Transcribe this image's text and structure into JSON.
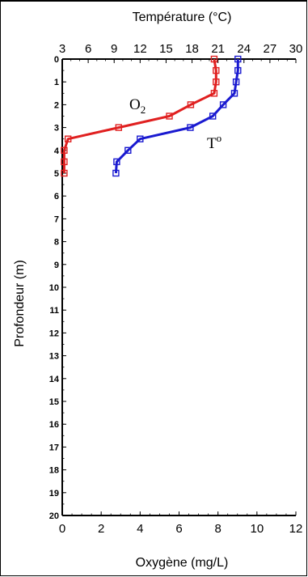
{
  "chart_data": {
    "type": "line",
    "title": "",
    "top_axis": {
      "label": "Température (°C)",
      "range": [
        3,
        30
      ],
      "ticks": [
        "3",
        "6",
        "9",
        "12",
        "15",
        "18",
        "21",
        "24",
        "27",
        "30"
      ]
    },
    "bottom_axis": {
      "label": "Oxygène (mg/L)",
      "range": [
        0,
        12
      ],
      "ticks": [
        "0",
        "2",
        "4",
        "6",
        "8",
        "10",
        "12"
      ]
    },
    "y_axis": {
      "label": "Profondeur (m)",
      "range": [
        0,
        20
      ],
      "inverted": true,
      "ticks": [
        "0",
        "1",
        "2",
        "3",
        "4",
        "5",
        "6",
        "7",
        "8",
        "9",
        "10",
        "11",
        "12",
        "13",
        "14",
        "15",
        "16",
        "17",
        "18",
        "19",
        "20"
      ]
    },
    "grid": false,
    "series": [
      {
        "name": "O2",
        "axis": "bottom",
        "color": "#e02020",
        "marker": "square",
        "points": [
          {
            "depth": 0,
            "value": 7.8
          },
          {
            "depth": 0.5,
            "value": 7.9
          },
          {
            "depth": 1,
            "value": 7.9
          },
          {
            "depth": 1.5,
            "value": 7.8
          },
          {
            "depth": 2,
            "value": 6.6
          },
          {
            "depth": 2.5,
            "value": 5.5
          },
          {
            "depth": 3,
            "value": 2.9
          },
          {
            "depth": 3.5,
            "value": 0.3
          },
          {
            "depth": 4,
            "value": 0.1
          },
          {
            "depth": 4.5,
            "value": 0.1
          },
          {
            "depth": 5,
            "value": 0.1
          }
        ]
      },
      {
        "name": "Tº",
        "axis": "top",
        "color": "#1a1ad0",
        "marker": "square",
        "points": [
          {
            "depth": 0,
            "value": 23.3
          },
          {
            "depth": 0.5,
            "value": 23.3
          },
          {
            "depth": 1,
            "value": 23.1
          },
          {
            "depth": 1.5,
            "value": 22.9
          },
          {
            "depth": 2,
            "value": 21.6
          },
          {
            "depth": 2.5,
            "value": 20.4
          },
          {
            "depth": 3,
            "value": 17.8
          },
          {
            "depth": 3.5,
            "value": 12.0
          },
          {
            "depth": 4,
            "value": 10.6
          },
          {
            "depth": 4.5,
            "value": 9.3
          },
          {
            "depth": 5,
            "value": 9.2
          }
        ]
      }
    ],
    "annotations": [
      {
        "text_main": "O",
        "text_sub": "2",
        "series": "O2"
      },
      {
        "text_main": "T",
        "text_sup": "o",
        "series": "Tº"
      }
    ]
  }
}
